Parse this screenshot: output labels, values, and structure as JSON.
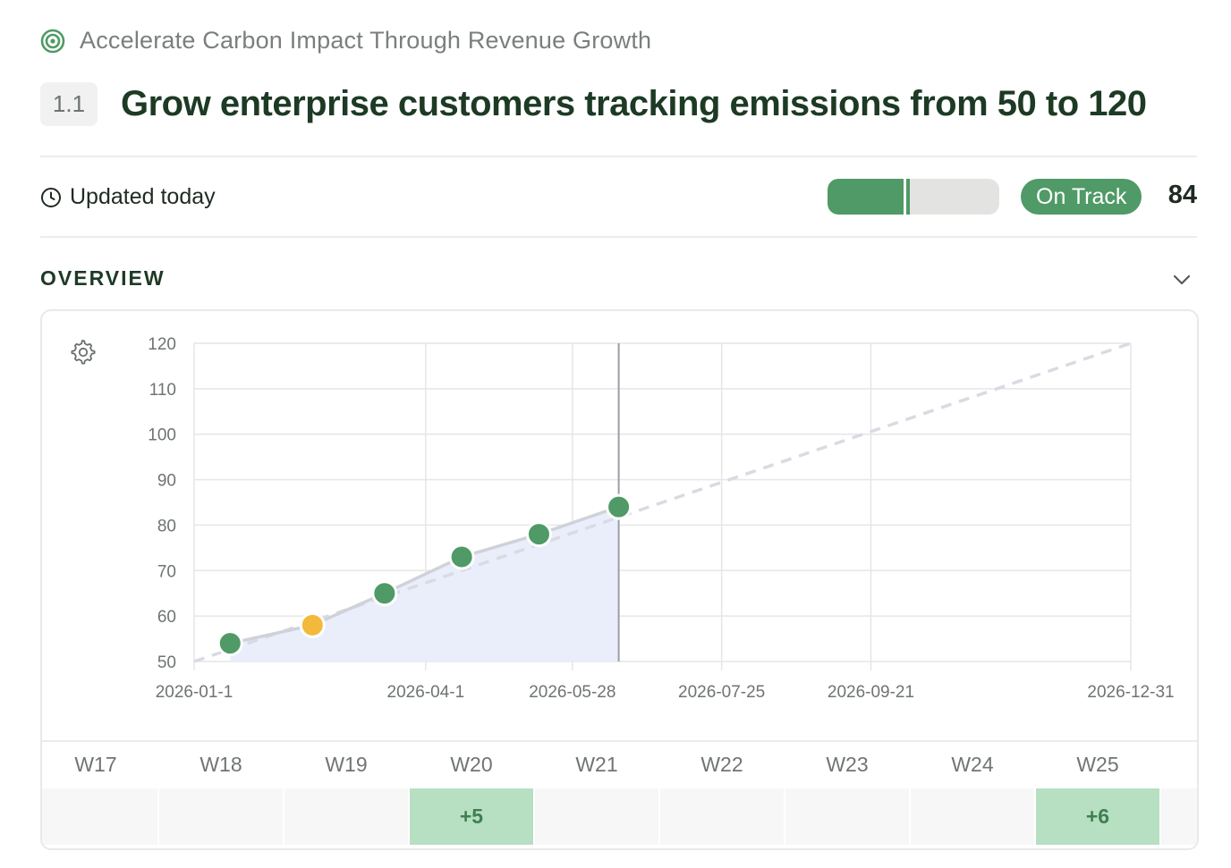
{
  "objective": {
    "title": "Accelerate Carbon Impact Through Revenue Growth",
    "icon": "target-icon"
  },
  "key_result": {
    "number": "1.1",
    "title": "Grow enterprise customers tracking emissions from 50 to 120"
  },
  "status": {
    "updated": "Updated today",
    "progress": 0.48,
    "expected_progress": 0.46,
    "badge": "On Track",
    "badge_color": "#4f9a66",
    "score": "84"
  },
  "overview": {
    "label": "OVERVIEW"
  },
  "chart_data": {
    "type": "line",
    "x_ticks": [
      "2026-01-1",
      "2026-04-1",
      "2026-05-28",
      "2026-07-25",
      "2026-09-21",
      "2026-12-31"
    ],
    "y_ticks": [
      "120",
      "110",
      "100",
      "90",
      "80",
      "70",
      "60",
      "50"
    ],
    "ylim": [
      50,
      120
    ],
    "xlim": [
      "2026-01-01",
      "2026-12-31"
    ],
    "target_line": {
      "from": [
        "2026-01-01",
        50
      ],
      "to": [
        "2026-12-31",
        120
      ],
      "style": "dashed"
    },
    "series": [
      {
        "points": [
          {
            "date": "2026-01-15",
            "value": 54,
            "status": "on-track"
          },
          {
            "date": "2026-02-16",
            "value": 58,
            "status": "at-risk"
          },
          {
            "date": "2026-03-16",
            "value": 65,
            "status": "on-track"
          },
          {
            "date": "2026-04-15",
            "value": 73,
            "status": "on-track"
          },
          {
            "date": "2026-05-15",
            "value": 78,
            "status": "on-track"
          },
          {
            "date": "2026-06-15",
            "value": 84,
            "status": "on-track"
          }
        ]
      }
    ],
    "today": "2026-06-15",
    "grid": true,
    "colors": {
      "on-track": "#4f9a66",
      "at-risk": "#f2b93b",
      "area": "#eaeefb",
      "target": "#d9dbe3"
    }
  },
  "weeks": {
    "labels": [
      "W17",
      "W18",
      "W19",
      "W20",
      "W21",
      "W22",
      "W23",
      "W24",
      "W25"
    ],
    "changes": [
      "",
      "",
      "",
      "+5",
      "",
      "",
      "",
      "",
      "+6"
    ]
  }
}
